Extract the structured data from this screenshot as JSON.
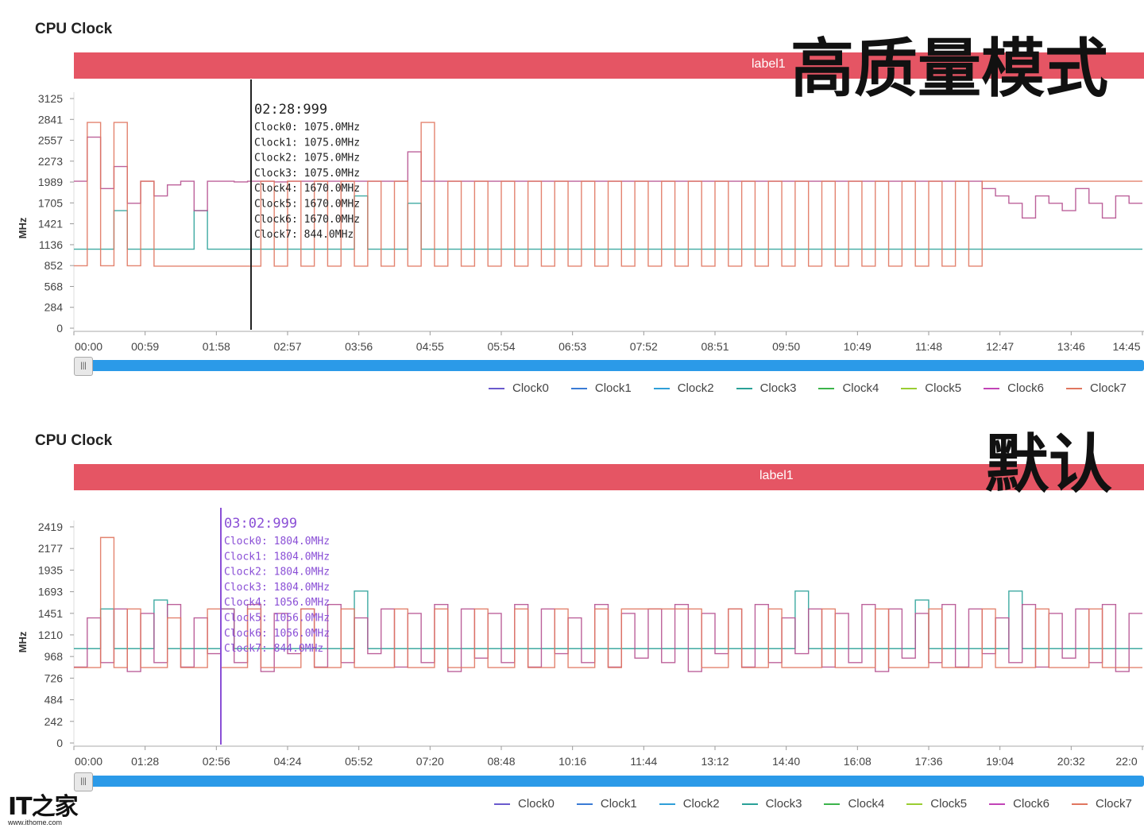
{
  "logo": {
    "text": "IT之家",
    "url_text": "www.ithome.com"
  },
  "colors": [
    "#6a5acd",
    "#3a7bd5",
    "#2f9fd8",
    "#2aa198",
    "#3cb44b",
    "#9acd32",
    "#c244b7",
    "#e0765f"
  ],
  "panels": [
    {
      "title": "CPU Clock",
      "big_title": "高质量模式",
      "label_text": "label1",
      "y_axis_label": "MHz",
      "tooltip": {
        "time": "02:28:999",
        "color": "#222222",
        "lines": [
          "Clock0: 1075.0MHz",
          "Clock1: 1075.0MHz",
          "Clock2: 1075.0MHz",
          "Clock3: 1075.0MHz",
          "Clock4: 1670.0MHz",
          "Clock5: 1670.0MHz",
          "Clock6: 1670.0MHz",
          "Clock7: 844.0MHz"
        ]
      },
      "legend": [
        "Clock0",
        "Clock1",
        "Clock2",
        "Clock3",
        "Clock4",
        "Clock5",
        "Clock6",
        "Clock7"
      ]
    },
    {
      "title": "CPU Clock",
      "big_title": "默认",
      "label_text": "label1",
      "y_axis_label": "MHz",
      "tooltip": {
        "time": "03:02:999",
        "color": "#8a4fd6",
        "lines": [
          "Clock0: 1804.0MHz",
          "Clock1: 1804.0MHz",
          "Clock2: 1804.0MHz",
          "Clock3: 1804.0MHz",
          "Clock4: 1056.0MHz",
          "Clock5: 1056.0MHz",
          "Clock6: 1056.0MHz",
          "Clock7: 844.0MHz"
        ]
      },
      "legend": [
        "Clock0",
        "Clock1",
        "Clock2",
        "Clock3",
        "Clock4",
        "Clock5",
        "Clock6",
        "Clock7"
      ]
    }
  ],
  "chart_data": [
    {
      "type": "line",
      "title": "CPU Clock",
      "ylabel": "MHz",
      "yticks": [
        0,
        284,
        568,
        852,
        1136,
        1421,
        1705,
        1989,
        2273,
        2557,
        2841,
        3125
      ],
      "ylim": [
        0,
        3125
      ],
      "xticks": [
        "00:00",
        "00:59",
        "01:58",
        "02:57",
        "03:56",
        "04:55",
        "05:54",
        "06:53",
        "07:52",
        "08:51",
        "09:50",
        "10:49",
        "11:48",
        "12:47",
        "13:46",
        "14:45"
      ],
      "cursor_time": "02:28:999",
      "series": [
        {
          "name": "Clock3",
          "values": [
            1075,
            1075,
            1075,
            1600,
            1075,
            1075,
            1075,
            1075,
            1075,
            1600,
            1075,
            1075,
            1075,
            1075,
            1075,
            1075,
            1075,
            1075,
            1075,
            1075,
            1075,
            1800,
            1075,
            1075,
            1075,
            1700,
            1075,
            1075,
            1075,
            1075,
            1075,
            1075,
            1075,
            1075,
            1075,
            1075,
            1075,
            1075,
            1075,
            1075,
            1075,
            1075,
            1075,
            1075,
            1075,
            1075,
            1075,
            1075,
            1075,
            1075,
            1075,
            1075,
            1075,
            1075,
            1075,
            1075,
            1075,
            1075,
            1075,
            1075,
            1075,
            1075,
            1075,
            1075,
            1075,
            1075,
            1075,
            1075,
            1075,
            1075,
            1075,
            1075,
            1075,
            1075,
            1075,
            1075,
            1075,
            1075,
            1075,
            1075
          ]
        },
        {
          "name": "Clock6",
          "values": [
            2000,
            2600,
            1900,
            2200,
            1700,
            2000,
            1800,
            1950,
            2000,
            1600,
            2000,
            2000,
            1990,
            2000,
            2000,
            1990,
            2000,
            2000,
            2000,
            2000,
            2000,
            2000,
            2000,
            2000,
            2000,
            2400,
            2000,
            2000,
            2000,
            2000,
            2000,
            2000,
            2000,
            2000,
            2000,
            2000,
            2000,
            2000,
            2000,
            2000,
            2000,
            2000,
            2000,
            2000,
            2000,
            2000,
            2000,
            2000,
            2000,
            2000,
            2000,
            2000,
            2000,
            2000,
            2000,
            2000,
            2000,
            2000,
            2000,
            2000,
            2000,
            2000,
            2000,
            2000,
            2000,
            2000,
            2000,
            2000,
            1900,
            1800,
            1700,
            1500,
            1800,
            1700,
            1600,
            1900,
            1700,
            1500,
            1800,
            1700
          ]
        },
        {
          "name": "Clock7",
          "values": [
            850,
            2800,
            850,
            2800,
            850,
            2000,
            844,
            844,
            844,
            844,
            844,
            844,
            844,
            844,
            2000,
            844,
            2000,
            844,
            2000,
            844,
            2000,
            844,
            2000,
            844,
            2000,
            844,
            2800,
            844,
            2000,
            844,
            2000,
            844,
            2000,
            844,
            2000,
            844,
            2000,
            844,
            2000,
            844,
            2000,
            844,
            2000,
            844,
            2000,
            844,
            2000,
            844,
            2000,
            844,
            2000,
            844,
            2000,
            844,
            2000,
            844,
            2000,
            844,
            2000,
            844,
            2000,
            844,
            2000,
            844,
            2000,
            844,
            2000,
            844,
            2000,
            2000,
            2000,
            2000,
            2000,
            2000,
            2000,
            2000,
            2000,
            2000,
            2000,
            2000
          ]
        }
      ]
    },
    {
      "type": "line",
      "title": "CPU Clock",
      "ylabel": "MHz",
      "yticks": [
        0,
        242,
        484,
        726,
        968,
        1210,
        1451,
        1693,
        1935,
        2177,
        2419
      ],
      "ylim": [
        0,
        2661
      ],
      "xticks": [
        "00:00",
        "01:28",
        "02:56",
        "04:24",
        "05:52",
        "07:20",
        "08:48",
        "10:16",
        "11:44",
        "13:12",
        "14:40",
        "16:08",
        "17:36",
        "19:04",
        "20:32",
        "22:0"
      ],
      "cursor_time": "03:02:999",
      "series": [
        {
          "name": "Clock3",
          "values": [
            1056,
            1056,
            1500,
            1056,
            1056,
            1056,
            1600,
            1056,
            1056,
            1056,
            1056,
            1500,
            1056,
            1056,
            1056,
            1056,
            1056,
            1056,
            1056,
            1056,
            1056,
            1700,
            1056,
            1056,
            1056,
            1056,
            1056,
            1056,
            1056,
            1056,
            1056,
            1056,
            1056,
            1056,
            1056,
            1056,
            1056,
            1056,
            1056,
            1056,
            1056,
            1056,
            1056,
            1056,
            1056,
            1056,
            1056,
            1056,
            1056,
            1056,
            1056,
            1056,
            1056,
            1056,
            1700,
            1056,
            1056,
            1056,
            1056,
            1056,
            1056,
            1056,
            1056,
            1600,
            1056,
            1056,
            1056,
            1056,
            1056,
            1056,
            1700,
            1056,
            1056,
            1056,
            1056,
            1056,
            1056,
            1056,
            1056,
            1056
          ]
        },
        {
          "name": "Clock6",
          "values": [
            850,
            1400,
            900,
            1500,
            800,
            1450,
            900,
            1550,
            850,
            1400,
            1000,
            1500,
            900,
            1550,
            800,
            1450,
            1000,
            1500,
            850,
            1550,
            900,
            1400,
            1000,
            1500,
            850,
            1450,
            900,
            1550,
            800,
            1500,
            950,
            1450,
            900,
            1550,
            850,
            1500,
            1000,
            1400,
            900,
            1550,
            850,
            1450,
            950,
            1500,
            900,
            1550,
            800,
            1450,
            1000,
            1500,
            850,
            1550,
            900,
            1400,
            1000,
            1500,
            850,
            1450,
            900,
            1550,
            800,
            1500,
            950,
            1450,
            900,
            1550,
            850,
            1500,
            1000,
            1400,
            900,
            1550,
            850,
            1450,
            950,
            1500,
            900,
            1550,
            800,
            1450
          ]
        },
        {
          "name": "Clock7",
          "values": [
            844,
            844,
            2300,
            844,
            1500,
            844,
            844,
            1400,
            844,
            844,
            1500,
            844,
            844,
            1500,
            844,
            844,
            844,
            1500,
            844,
            844,
            1500,
            844,
            844,
            844,
            1500,
            844,
            844,
            1500,
            844,
            844,
            1500,
            844,
            844,
            1500,
            844,
            844,
            1500,
            844,
            844,
            1500,
            844,
            1500,
            1500,
            1500,
            1500,
            1500,
            1500,
            844,
            844,
            1500,
            844,
            844,
            1500,
            844,
            844,
            844,
            1500,
            844,
            844,
            844,
            1500,
            844,
            844,
            844,
            1500,
            844,
            844,
            844,
            1500,
            844,
            844,
            844,
            1500,
            844,
            844,
            844,
            1500,
            844,
            844,
            844
          ]
        }
      ]
    }
  ]
}
